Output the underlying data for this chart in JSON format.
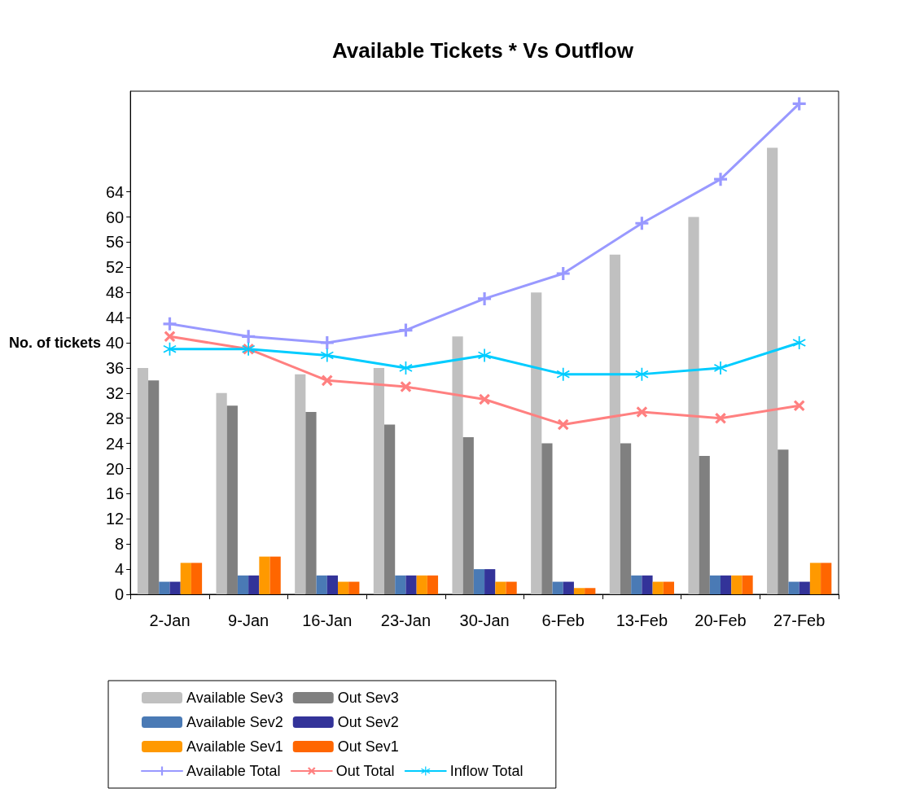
{
  "chart_data": {
    "type": "bar",
    "title": "Available Tickets * Vs Outflow",
    "ylabel": "No. of tickets",
    "categories": [
      "2-Jan",
      "9-Jan",
      "16-Jan",
      "23-Jan",
      "30-Jan",
      "6-Feb",
      "13-Feb",
      "20-Feb",
      "27-Feb"
    ],
    "series": [
      {
        "name": "Available Sev3",
        "color": "#c0c0c0",
        "values": [
          36,
          32,
          35,
          36,
          41,
          48,
          54,
          60,
          71
        ]
      },
      {
        "name": "Out Sev3",
        "color": "#808080",
        "values": [
          34,
          30,
          29,
          27,
          25,
          24,
          24,
          22,
          23
        ]
      },
      {
        "name": "Available Sev2",
        "color": "#4a7ab5",
        "values": [
          2,
          3,
          3,
          3,
          4,
          2,
          3,
          3,
          2
        ]
      },
      {
        "name": "Out Sev2",
        "color": "#333399",
        "values": [
          2,
          3,
          3,
          3,
          4,
          2,
          3,
          3,
          2
        ]
      },
      {
        "name": "Available Sev1",
        "color": "#ff9900",
        "values": [
          5,
          6,
          2,
          3,
          2,
          1,
          2,
          3,
          5
        ]
      },
      {
        "name": "Out Sev1",
        "color": "#ff6600",
        "values": [
          5,
          6,
          2,
          3,
          2,
          1,
          2,
          3,
          5
        ]
      },
      {
        "name": "Available Total",
        "type": "line",
        "marker": "cross",
        "color": "#9999ff",
        "values": [
          43,
          41,
          40,
          42,
          47,
          51,
          59,
          66,
          78
        ]
      },
      {
        "name": "Out Total",
        "type": "line",
        "marker": "cross",
        "color": "#ff8080",
        "values": [
          41,
          39,
          34,
          33,
          31,
          27,
          29,
          28,
          30
        ]
      },
      {
        "name": "Inflow Total",
        "type": "line",
        "marker": "star",
        "color": "#00ccff",
        "values": [
          39,
          39,
          38,
          36,
          38,
          35,
          35,
          36,
          40
        ]
      }
    ],
    "ylim": [
      0,
      80
    ],
    "yticks": [
      0,
      4,
      8,
      12,
      16,
      20,
      24,
      28,
      32,
      36,
      40,
      44,
      48,
      52,
      56,
      60,
      64
    ],
    "grid": false,
    "legend": "bottom left"
  }
}
